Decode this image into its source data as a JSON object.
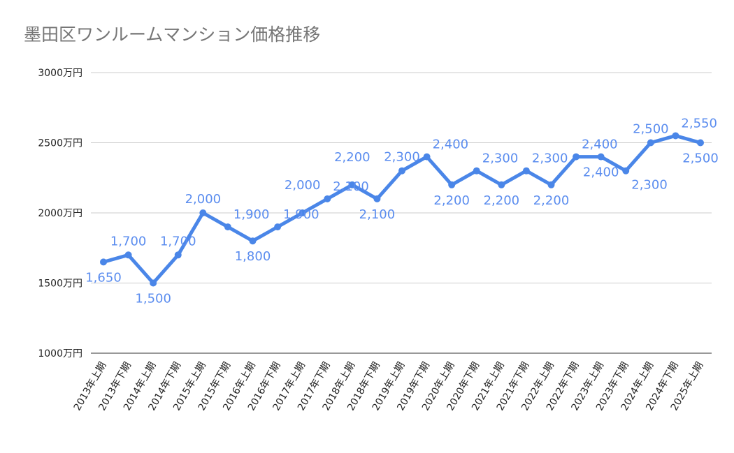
{
  "chart_data": {
    "type": "line",
    "title": "墨田区ワンルームマンション価格推移",
    "xlabel": "",
    "ylabel": "",
    "categories": [
      "2013年上期",
      "2013年下期",
      "2014年上期",
      "2014年下期",
      "2015年上期",
      "2015年下期",
      "2016年上期",
      "2016年下期",
      "2017年上期",
      "2017年下期",
      "2018年上期",
      "2018年下期",
      "2019年上期",
      "2019年下期",
      "2020年上期",
      "2020年下期",
      "2021年上期",
      "2021年下期",
      "2022年上期",
      "2022年下期",
      "2023年上期",
      "2023年下期",
      "2024年上期",
      "2024年下期",
      "2025年上期"
    ],
    "series": [
      {
        "values": [
          1650,
          1700,
          1500,
          1700,
          2000,
          1900,
          1800,
          1900,
          2000,
          2100,
          2200,
          2100,
          2300,
          2400,
          2200,
          2300,
          2200,
          2300,
          2200,
          2400,
          2400,
          2300,
          2500,
          2550,
          2500
        ]
      }
    ],
    "data_labels": [
      "1,650",
      "1,700",
      "1,500",
      "1,700",
      "2,000",
      "1,900",
      "1,800",
      "1,900",
      "2,000",
      "2,100",
      "2,200",
      "2,100",
      "2,300",
      "2,400",
      "2,200",
      "2,300",
      "2,200",
      "2,300",
      "2,200",
      "2,400",
      "2,400",
      "2,300",
      "2,500",
      "2,550",
      "2,500"
    ],
    "ylim": [
      1000,
      3000
    ],
    "yticks": [
      1000,
      1500,
      2000,
      2500,
      3000
    ],
    "ytick_labels": [
      "1000万円",
      "1500万円",
      "2000万円",
      "2500万円",
      "3000万円"
    ],
    "grid": true,
    "legend": "none",
    "colors": {
      "line": "#4a86e8",
      "labels": "#5b8def",
      "title": "#757575",
      "grid": "#cccccc"
    }
  }
}
